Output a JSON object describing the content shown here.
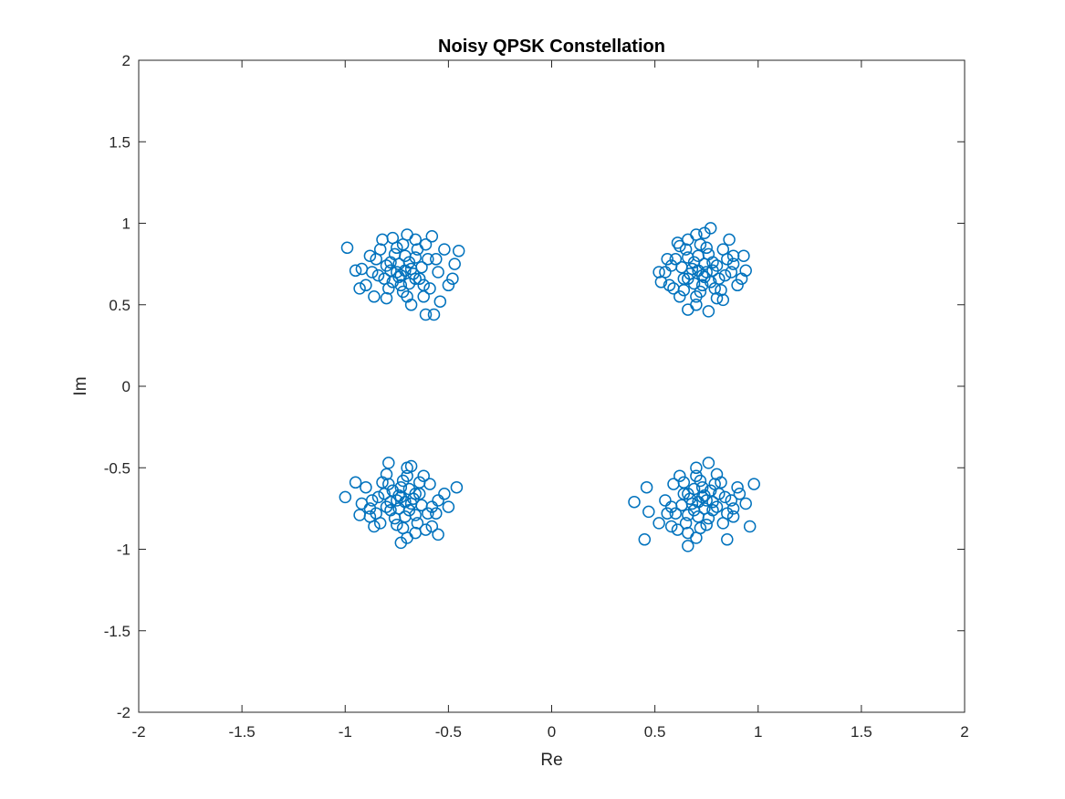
{
  "chart_data": {
    "type": "scatter",
    "title": "Noisy QPSK Constellation",
    "xlabel": "Re",
    "ylabel": "Im",
    "xlim": [
      -2,
      2
    ],
    "ylim": [
      -2,
      2
    ],
    "xticks": [
      "-2",
      "-1.5",
      "-1",
      "-0.5",
      "0",
      "0.5",
      "1",
      "1.5",
      "2"
    ],
    "yticks": [
      "-2",
      "-1.5",
      "-1",
      "-0.5",
      "0",
      "0.5",
      "1",
      "1.5",
      "2"
    ],
    "grid": false,
    "legend": "none",
    "marker": "open-circle",
    "color": "#0072BD",
    "series": [
      {
        "points": [
          [
            -0.71,
            0.71
          ],
          [
            -0.78,
            0.76
          ],
          [
            -0.64,
            0.66
          ],
          [
            -0.84,
            0.68
          ],
          [
            -0.6,
            0.78
          ],
          [
            -0.72,
            0.58
          ],
          [
            -0.75,
            0.85
          ],
          [
            -0.66,
            0.9
          ],
          [
            -0.88,
            0.8
          ],
          [
            -0.55,
            0.7
          ],
          [
            -0.9,
            0.62
          ],
          [
            -0.52,
            0.84
          ],
          [
            -0.8,
            0.54
          ],
          [
            -0.62,
            0.55
          ],
          [
            -0.7,
            0.93
          ],
          [
            -0.92,
            0.72
          ],
          [
            -0.5,
            0.62
          ],
          [
            -0.82,
            0.9
          ],
          [
            -0.58,
            0.92
          ],
          [
            -0.68,
            0.5
          ],
          [
            -0.99,
            0.85
          ],
          [
            -0.95,
            0.71
          ],
          [
            -0.93,
            0.6
          ],
          [
            -0.47,
            0.75
          ],
          [
            -0.45,
            0.83
          ],
          [
            -0.48,
            0.66
          ],
          [
            -0.57,
            0.44
          ],
          [
            -0.61,
            0.44
          ],
          [
            -0.54,
            0.52
          ],
          [
            -0.86,
            0.55
          ],
          [
            -0.77,
            0.64
          ],
          [
            -0.66,
            0.79
          ],
          [
            -0.73,
            0.68
          ],
          [
            -0.8,
            0.74
          ],
          [
            -0.63,
            0.73
          ],
          [
            -0.69,
            0.63
          ],
          [
            -0.76,
            0.81
          ],
          [
            -0.85,
            0.78
          ],
          [
            -0.59,
            0.6
          ],
          [
            -0.72,
            0.87
          ],
          [
            -0.67,
            0.69
          ],
          [
            -0.74,
            0.75
          ],
          [
            -0.81,
            0.66
          ],
          [
            -0.65,
            0.84
          ],
          [
            -0.79,
            0.6
          ],
          [
            -0.62,
            0.62
          ],
          [
            -0.87,
            0.7
          ],
          [
            -0.56,
            0.78
          ],
          [
            -0.7,
            0.55
          ],
          [
            -0.77,
            0.91
          ],
          [
            -0.61,
            0.87
          ],
          [
            -0.83,
            0.84
          ],
          [
            -0.73,
            0.62
          ],
          [
            -0.69,
            0.76
          ],
          [
            -0.75,
            0.7
          ],
          [
            -0.68,
            0.72
          ],
          [
            -0.74,
            0.67
          ],
          [
            -0.66,
            0.66
          ],
          [
            -0.78,
            0.71
          ],
          [
            -0.71,
            0.8
          ]
        ]
      },
      {
        "points": [
          [
            0.71,
            0.71
          ],
          [
            0.78,
            0.76
          ],
          [
            0.64,
            0.66
          ],
          [
            0.84,
            0.68
          ],
          [
            0.6,
            0.78
          ],
          [
            0.72,
            0.58
          ],
          [
            0.75,
            0.85
          ],
          [
            0.66,
            0.9
          ],
          [
            0.88,
            0.8
          ],
          [
            0.55,
            0.7
          ],
          [
            0.9,
            0.62
          ],
          [
            0.62,
            0.86
          ],
          [
            0.8,
            0.54
          ],
          [
            0.62,
            0.55
          ],
          [
            0.7,
            0.93
          ],
          [
            0.57,
            0.62
          ],
          [
            0.77,
            0.97
          ],
          [
            0.74,
            0.94
          ],
          [
            0.93,
            0.8
          ],
          [
            0.92,
            0.66
          ],
          [
            0.94,
            0.71
          ],
          [
            0.76,
            0.46
          ],
          [
            0.66,
            0.47
          ],
          [
            0.52,
            0.7
          ],
          [
            0.53,
            0.64
          ],
          [
            0.83,
            0.53
          ],
          [
            0.86,
            0.9
          ],
          [
            0.77,
            0.64
          ],
          [
            0.66,
            0.79
          ],
          [
            0.73,
            0.68
          ],
          [
            0.8,
            0.74
          ],
          [
            0.63,
            0.73
          ],
          [
            0.69,
            0.63
          ],
          [
            0.76,
            0.81
          ],
          [
            0.85,
            0.78
          ],
          [
            0.59,
            0.6
          ],
          [
            0.72,
            0.87
          ],
          [
            0.67,
            0.69
          ],
          [
            0.74,
            0.75
          ],
          [
            0.81,
            0.66
          ],
          [
            0.65,
            0.84
          ],
          [
            0.79,
            0.6
          ],
          [
            0.87,
            0.7
          ],
          [
            0.56,
            0.78
          ],
          [
            0.7,
            0.55
          ],
          [
            0.61,
            0.88
          ],
          [
            0.83,
            0.84
          ],
          [
            0.73,
            0.62
          ],
          [
            0.69,
            0.76
          ],
          [
            0.75,
            0.7
          ],
          [
            0.68,
            0.72
          ],
          [
            0.74,
            0.67
          ],
          [
            0.66,
            0.66
          ],
          [
            0.78,
            0.71
          ],
          [
            0.71,
            0.8
          ],
          [
            0.64,
            0.59
          ],
          [
            0.82,
            0.59
          ],
          [
            0.58,
            0.74
          ],
          [
            0.88,
            0.75
          ],
          [
            0.7,
            0.5
          ]
        ]
      },
      {
        "points": [
          [
            -0.71,
            -0.71
          ],
          [
            -0.78,
            -0.76
          ],
          [
            -0.64,
            -0.66
          ],
          [
            -0.84,
            -0.68
          ],
          [
            -0.6,
            -0.78
          ],
          [
            -0.72,
            -0.58
          ],
          [
            -0.75,
            -0.85
          ],
          [
            -0.66,
            -0.9
          ],
          [
            -0.88,
            -0.8
          ],
          [
            -0.55,
            -0.7
          ],
          [
            -0.9,
            -0.62
          ],
          [
            -0.58,
            -0.86
          ],
          [
            -0.8,
            -0.54
          ],
          [
            -0.62,
            -0.55
          ],
          [
            -0.7,
            -0.93
          ],
          [
            -0.92,
            -0.72
          ],
          [
            -1.0,
            -0.68
          ],
          [
            -0.95,
            -0.59
          ],
          [
            -0.73,
            -0.96
          ],
          [
            -0.79,
            -0.47
          ],
          [
            -0.68,
            -0.49
          ],
          [
            -0.46,
            -0.62
          ],
          [
            -0.5,
            -0.74
          ],
          [
            -0.55,
            -0.91
          ],
          [
            -0.86,
            -0.86
          ],
          [
            -0.77,
            -0.64
          ],
          [
            -0.66,
            -0.79
          ],
          [
            -0.73,
            -0.68
          ],
          [
            -0.8,
            -0.74
          ],
          [
            -0.63,
            -0.73
          ],
          [
            -0.69,
            -0.63
          ],
          [
            -0.76,
            -0.81
          ],
          [
            -0.85,
            -0.78
          ],
          [
            -0.59,
            -0.6
          ],
          [
            -0.72,
            -0.87
          ],
          [
            -0.67,
            -0.69
          ],
          [
            -0.74,
            -0.75
          ],
          [
            -0.81,
            -0.66
          ],
          [
            -0.65,
            -0.84
          ],
          [
            -0.79,
            -0.6
          ],
          [
            -0.87,
            -0.7
          ],
          [
            -0.56,
            -0.78
          ],
          [
            -0.7,
            -0.55
          ],
          [
            -0.61,
            -0.88
          ],
          [
            -0.83,
            -0.84
          ],
          [
            -0.73,
            -0.62
          ],
          [
            -0.69,
            -0.76
          ],
          [
            -0.75,
            -0.7
          ],
          [
            -0.68,
            -0.72
          ],
          [
            -0.74,
            -0.67
          ],
          [
            -0.66,
            -0.66
          ],
          [
            -0.78,
            -0.71
          ],
          [
            -0.71,
            -0.8
          ],
          [
            -0.64,
            -0.59
          ],
          [
            -0.82,
            -0.59
          ],
          [
            -0.58,
            -0.74
          ],
          [
            -0.88,
            -0.75
          ],
          [
            -0.7,
            -0.5
          ],
          [
            -0.93,
            -0.79
          ],
          [
            -0.52,
            -0.66
          ]
        ]
      },
      {
        "points": [
          [
            0.71,
            -0.71
          ],
          [
            0.78,
            -0.76
          ],
          [
            0.64,
            -0.66
          ],
          [
            0.84,
            -0.68
          ],
          [
            0.6,
            -0.78
          ],
          [
            0.72,
            -0.58
          ],
          [
            0.75,
            -0.85
          ],
          [
            0.66,
            -0.9
          ],
          [
            0.88,
            -0.8
          ],
          [
            0.55,
            -0.7
          ],
          [
            0.9,
            -0.62
          ],
          [
            0.58,
            -0.86
          ],
          [
            0.8,
            -0.54
          ],
          [
            0.62,
            -0.55
          ],
          [
            0.7,
            -0.93
          ],
          [
            0.4,
            -0.71
          ],
          [
            0.45,
            -0.94
          ],
          [
            0.46,
            -0.62
          ],
          [
            0.47,
            -0.77
          ],
          [
            0.66,
            -0.98
          ],
          [
            0.76,
            -0.47
          ],
          [
            0.98,
            -0.6
          ],
          [
            0.96,
            -0.86
          ],
          [
            0.85,
            -0.94
          ],
          [
            0.94,
            -0.72
          ],
          [
            0.52,
            -0.84
          ],
          [
            0.77,
            -0.64
          ],
          [
            0.66,
            -0.79
          ],
          [
            0.73,
            -0.68
          ],
          [
            0.8,
            -0.74
          ],
          [
            0.63,
            -0.73
          ],
          [
            0.69,
            -0.63
          ],
          [
            0.76,
            -0.81
          ],
          [
            0.85,
            -0.78
          ],
          [
            0.59,
            -0.6
          ],
          [
            0.72,
            -0.87
          ],
          [
            0.67,
            -0.69
          ],
          [
            0.74,
            -0.75
          ],
          [
            0.81,
            -0.66
          ],
          [
            0.65,
            -0.84
          ],
          [
            0.79,
            -0.6
          ],
          [
            0.87,
            -0.7
          ],
          [
            0.56,
            -0.78
          ],
          [
            0.7,
            -0.55
          ],
          [
            0.61,
            -0.88
          ],
          [
            0.83,
            -0.84
          ],
          [
            0.73,
            -0.62
          ],
          [
            0.69,
            -0.76
          ],
          [
            0.75,
            -0.7
          ],
          [
            0.68,
            -0.72
          ],
          [
            0.74,
            -0.67
          ],
          [
            0.66,
            -0.66
          ],
          [
            0.78,
            -0.71
          ],
          [
            0.71,
            -0.8
          ],
          [
            0.64,
            -0.59
          ],
          [
            0.82,
            -0.59
          ],
          [
            0.58,
            -0.74
          ],
          [
            0.88,
            -0.75
          ],
          [
            0.7,
            -0.5
          ],
          [
            0.91,
            -0.66
          ]
        ]
      }
    ]
  }
}
